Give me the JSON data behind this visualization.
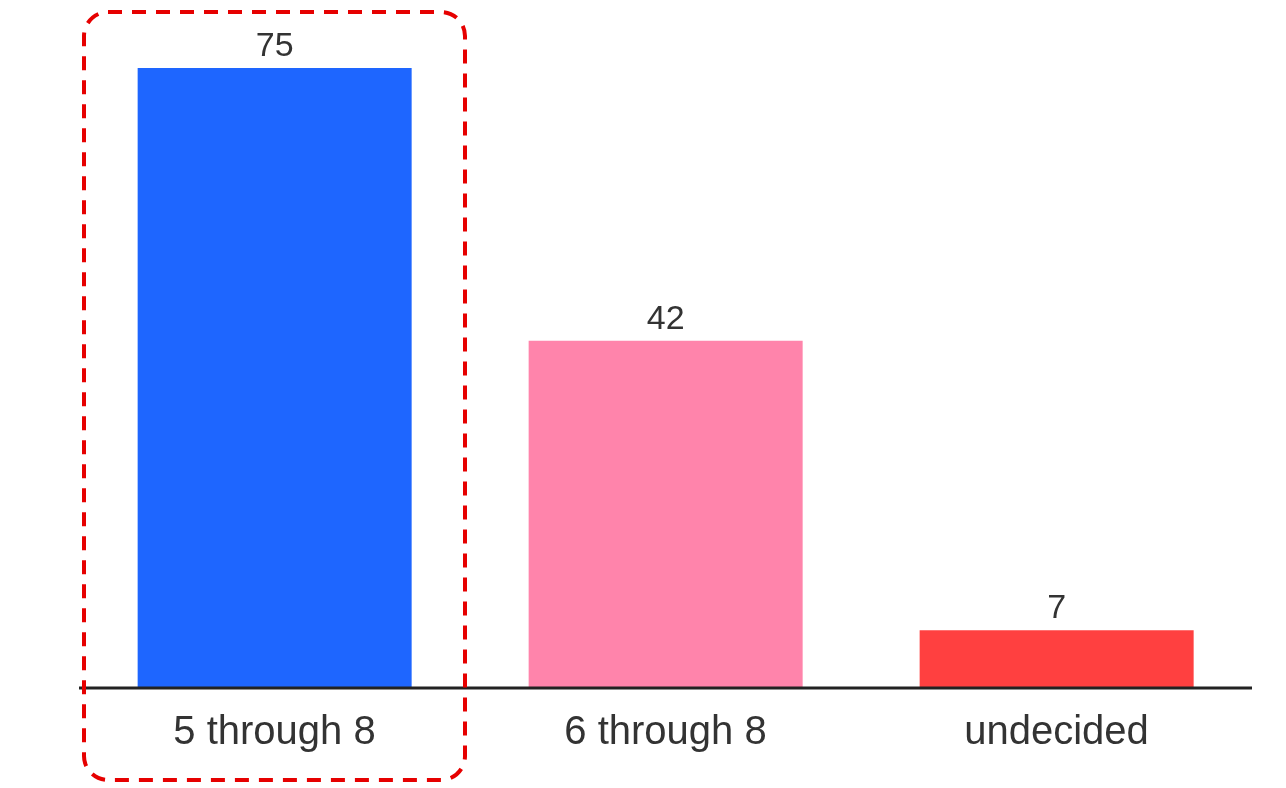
{
  "chart_data": {
    "type": "bar",
    "categories": [
      "5 through 8",
      "6 through 8",
      "undecided"
    ],
    "values": [
      75,
      42,
      7
    ],
    "colors": [
      "#1e66ff",
      "#ff84ab",
      "#ff4040"
    ],
    "data_labels": true,
    "grid": false,
    "legend": false
  }
}
